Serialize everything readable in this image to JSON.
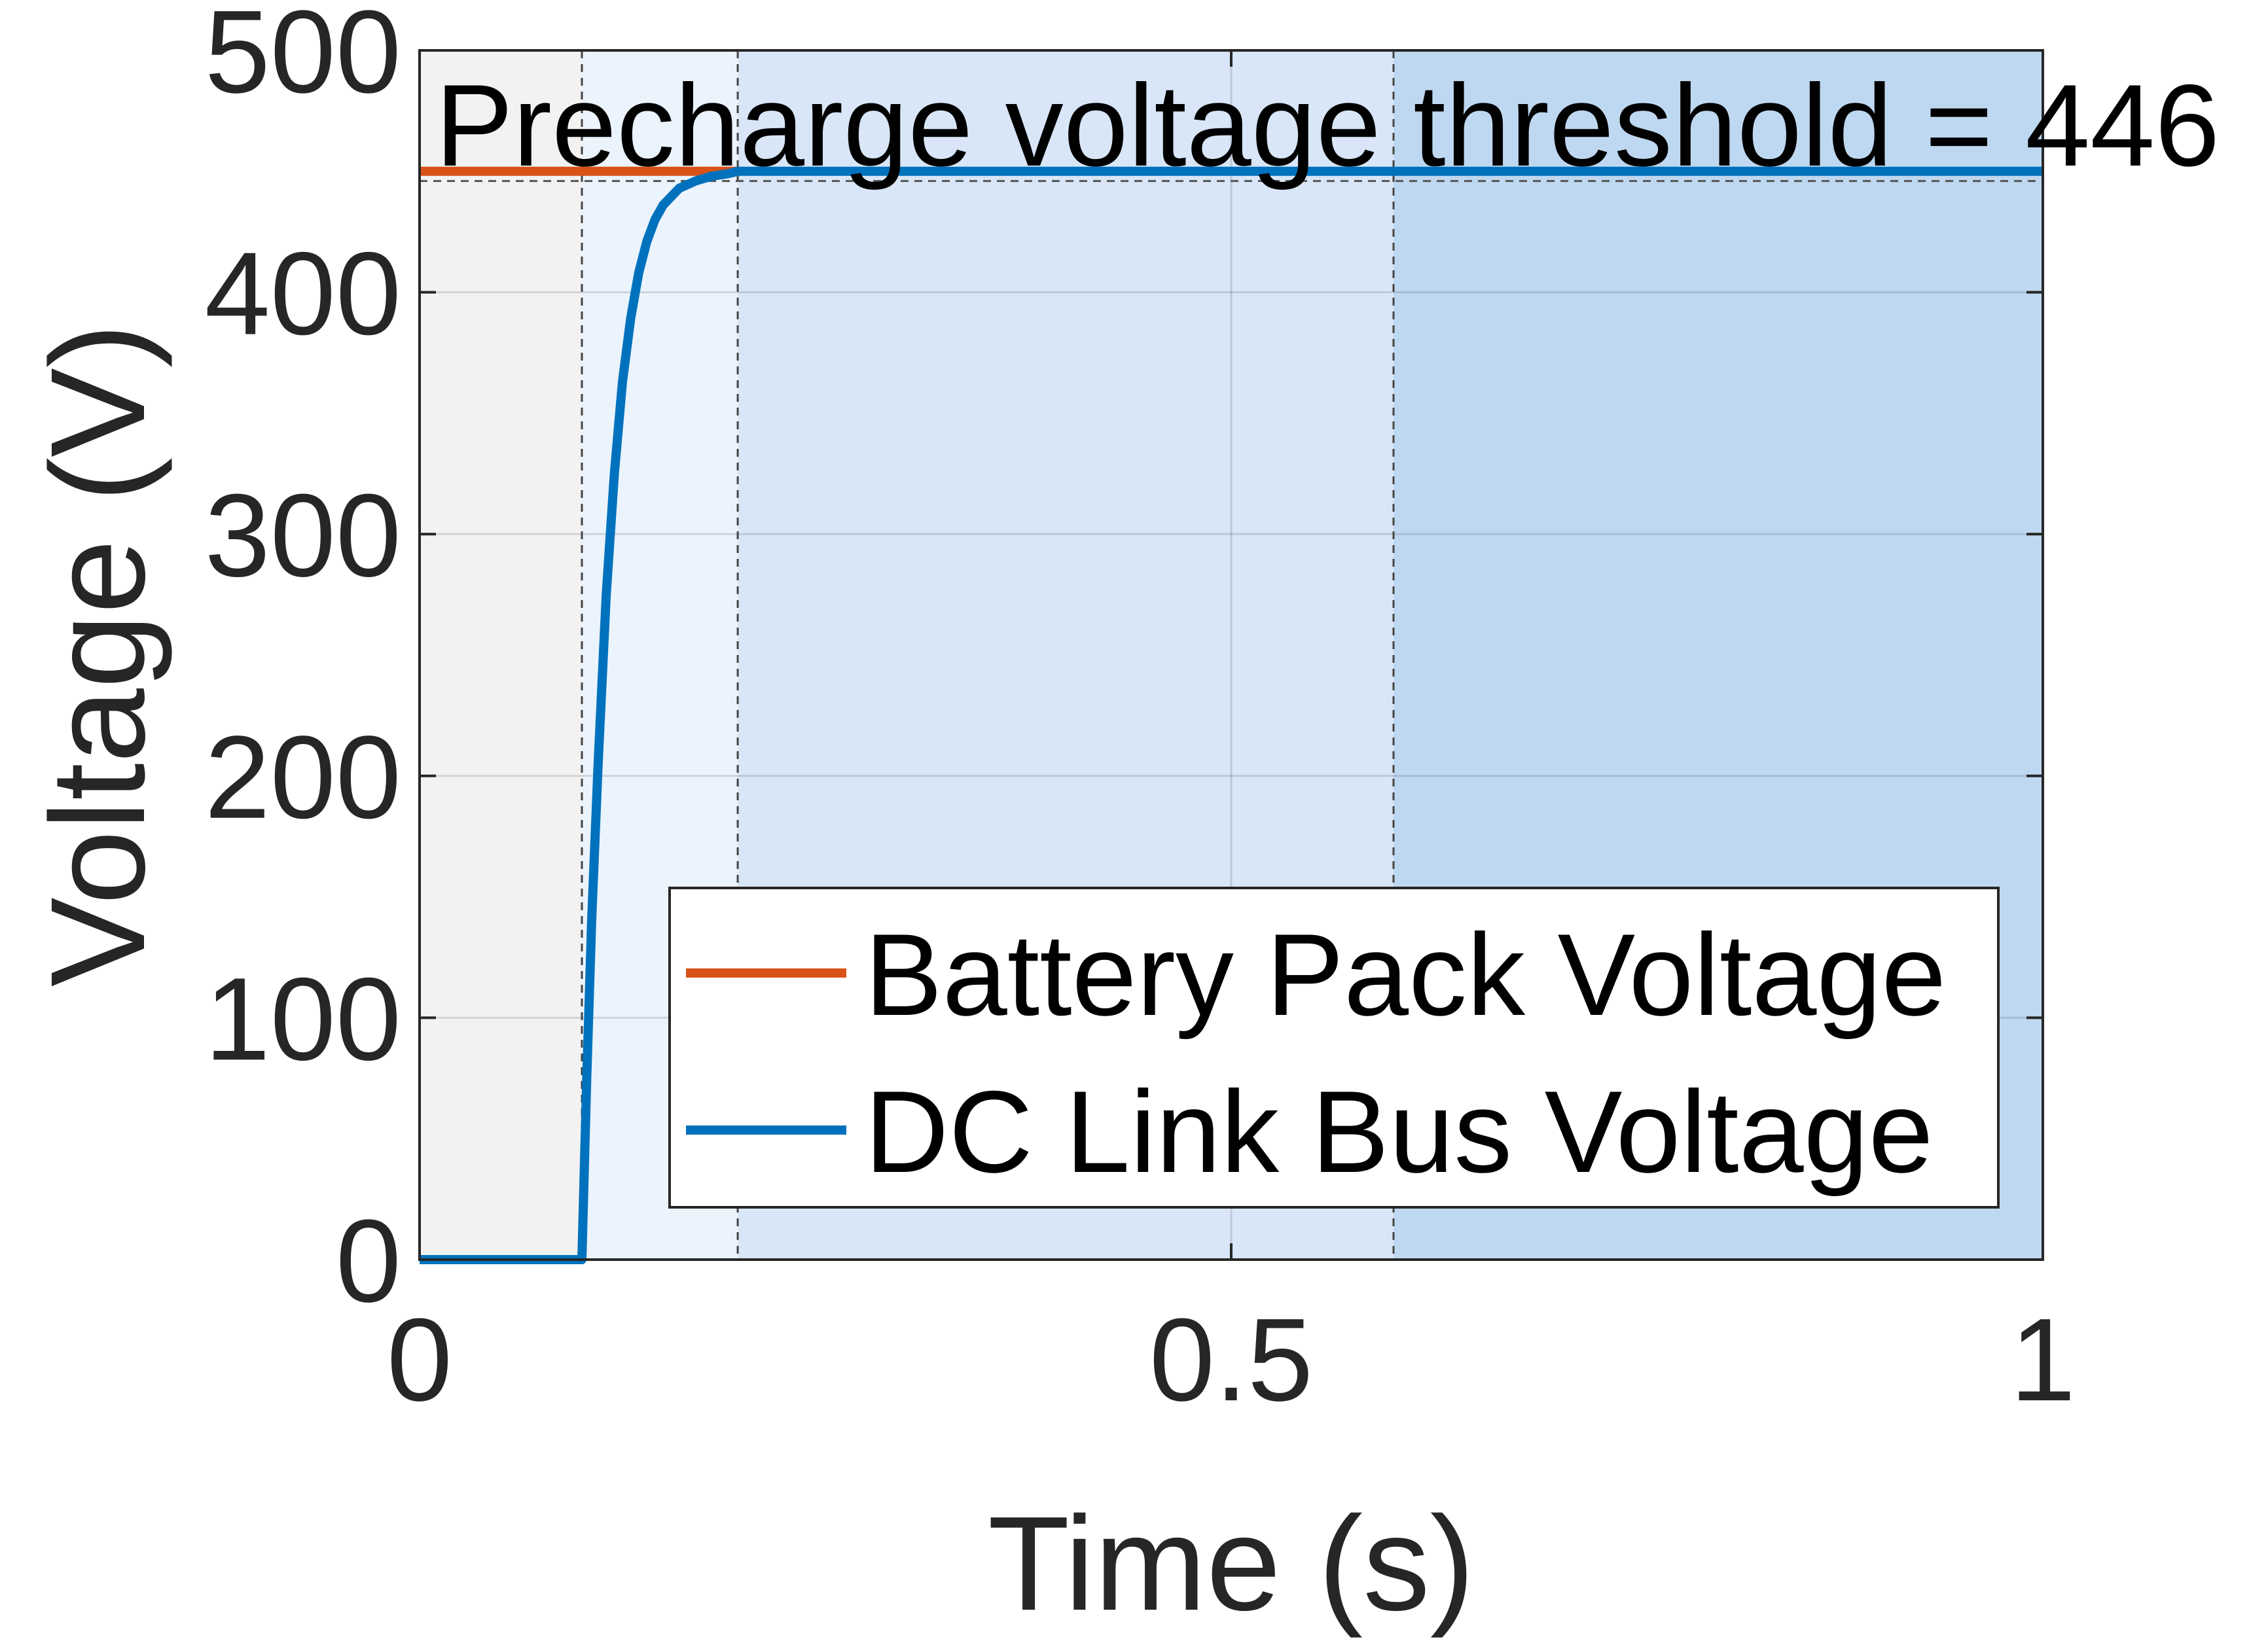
{
  "chart_data": {
    "type": "line",
    "xlabel": "Time (s)",
    "ylabel": "Voltage (V)",
    "xlim": [
      0,
      1
    ],
    "ylim": [
      0,
      500
    ],
    "xticks": [
      0,
      0.5,
      1
    ],
    "xtick_labels": [
      "0",
      "0.5",
      "1"
    ],
    "yticks": [
      0,
      100,
      200,
      300,
      400,
      500
    ],
    "ytick_labels": [
      "0",
      "100",
      "200",
      "300",
      "400",
      "500"
    ],
    "grid": true,
    "legend_position": "bottom-right",
    "annotation": {
      "text": "Precharge voltage threshold = 446",
      "threshold_value": 446
    },
    "regions": [
      {
        "x0": 0,
        "x1": 0.1,
        "color": "#f2f2f2"
      },
      {
        "x0": 0.1,
        "x1": 0.196,
        "color": "#ebf3fc"
      },
      {
        "x0": 0.196,
        "x1": 0.6,
        "color": "#d8e6f7"
      },
      {
        "x0": 0.6,
        "x1": 1,
        "color": "#bfd8f1"
      }
    ],
    "region_boundaries": [
      0.1,
      0.196,
      0.6
    ],
    "series": [
      {
        "name": "Battery Pack Voltage",
        "color": "#d95319",
        "x": [
          0,
          0.196
        ],
        "y": [
          450,
          450
        ]
      },
      {
        "name": "DC Link Bus Voltage",
        "color": "#0072bd",
        "x": [
          0,
          0.1,
          0.103,
          0.106,
          0.11,
          0.115,
          0.12,
          0.125,
          0.13,
          0.135,
          0.14,
          0.145,
          0.15,
          0.16,
          0.17,
          0.18,
          0.19,
          0.196,
          0.25,
          0.5,
          1
        ],
        "y": [
          0,
          0,
          75,
          140,
          205,
          275,
          325,
          363,
          389,
          408,
          421,
          430,
          436,
          443,
          446,
          448,
          449,
          450,
          450,
          450,
          450
        ]
      }
    ]
  }
}
